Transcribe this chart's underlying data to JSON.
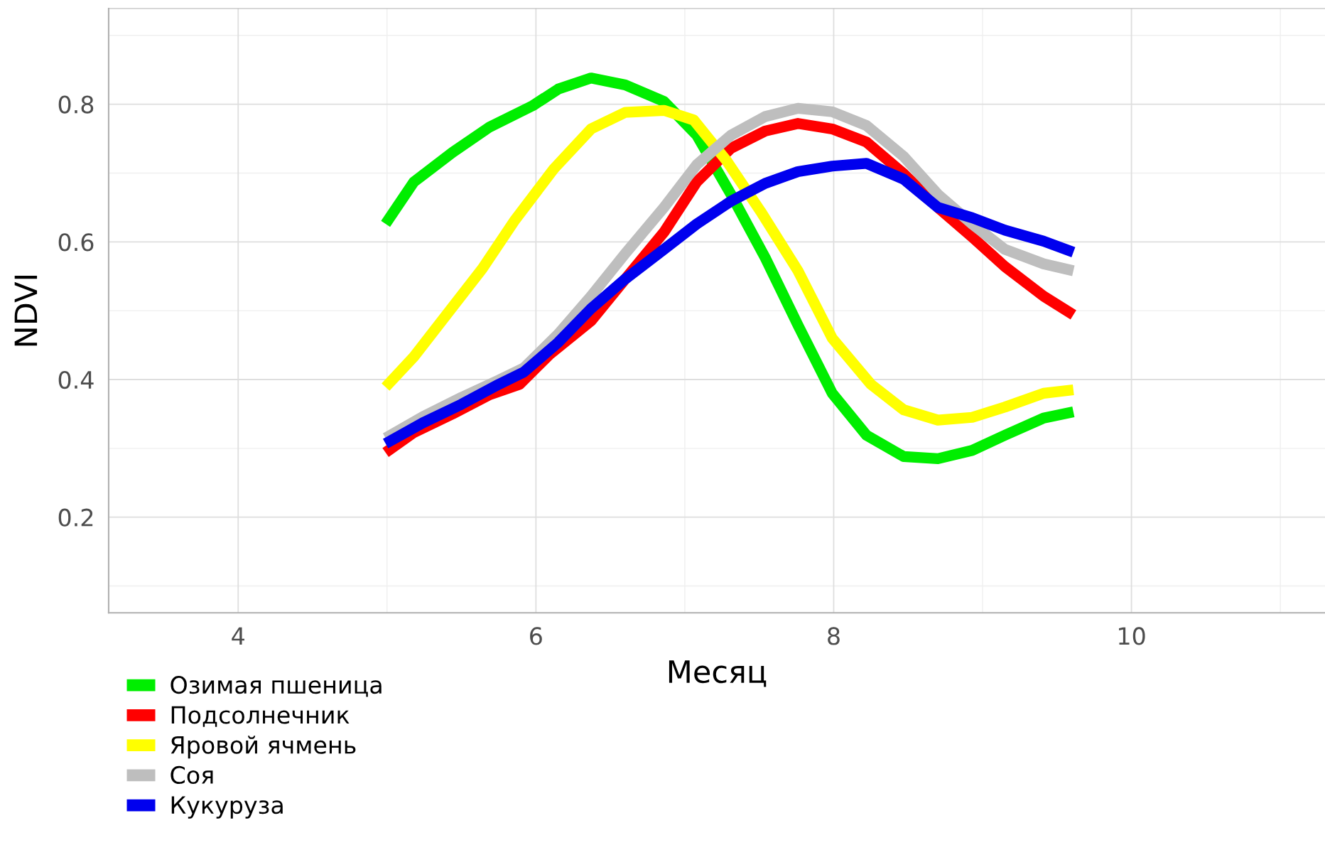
{
  "chart_data": {
    "type": "line",
    "xlabel": "Месяц",
    "ylabel": "NDVI",
    "xlim": [
      3.13,
      11.3
    ],
    "ylim": [
      0.061,
      0.939
    ],
    "xticks": [
      4,
      6,
      8,
      10
    ],
    "yticks": [
      0.2,
      0.4,
      0.6,
      0.8
    ],
    "grid": true,
    "legend": "bottom left",
    "line_style": "solid",
    "marker": "none",
    "series": [
      {
        "name": "Озимая пшеница",
        "color": "#00ee00",
        "x": [
          4.99,
          5.18,
          5.44,
          5.69,
          5.98,
          6.15,
          6.37,
          6.6,
          6.86,
          7.08,
          7.31,
          7.54,
          7.76,
          7.99,
          8.22,
          8.47,
          8.7,
          8.93,
          9.15,
          9.41,
          9.61
        ],
        "values": [
          0.626,
          0.687,
          0.73,
          0.767,
          0.798,
          0.822,
          0.838,
          0.828,
          0.804,
          0.755,
          0.669,
          0.577,
          0.479,
          0.38,
          0.319,
          0.288,
          0.285,
          0.297,
          0.319,
          0.344,
          0.353
        ]
      },
      {
        "name": "Подсолнечник",
        "color": "#ff0000",
        "x": [
          4.99,
          5.18,
          5.44,
          5.69,
          5.89,
          6.09,
          6.37,
          6.6,
          6.86,
          7.08,
          7.31,
          7.54,
          7.76,
          7.99,
          8.22,
          8.47,
          8.7,
          8.93,
          9.15,
          9.41,
          9.61
        ],
        "values": [
          0.294,
          0.323,
          0.35,
          0.378,
          0.393,
          0.436,
          0.485,
          0.546,
          0.614,
          0.687,
          0.736,
          0.761,
          0.772,
          0.764,
          0.745,
          0.699,
          0.65,
          0.607,
          0.564,
          0.521,
          0.494
        ]
      },
      {
        "name": "Яровой ячмень",
        "color": "#ffff00",
        "x": [
          4.99,
          5.18,
          5.41,
          5.64,
          5.86,
          6.12,
          6.37,
          6.6,
          6.86,
          7.06,
          7.28,
          7.51,
          7.76,
          7.99,
          8.25,
          8.47,
          8.7,
          8.93,
          9.15,
          9.41,
          9.61
        ],
        "values": [
          0.389,
          0.433,
          0.497,
          0.561,
          0.632,
          0.706,
          0.764,
          0.788,
          0.791,
          0.777,
          0.718,
          0.644,
          0.558,
          0.46,
          0.393,
          0.356,
          0.341,
          0.345,
          0.36,
          0.38,
          0.385
        ]
      },
      {
        "name": "Соя",
        "color": "#bebebe",
        "x": [
          4.99,
          5.24,
          5.5,
          5.75,
          5.92,
          6.15,
          6.37,
          6.6,
          6.86,
          7.08,
          7.31,
          7.54,
          7.76,
          7.99,
          8.22,
          8.47,
          8.7,
          8.93,
          9.15,
          9.41,
          9.61
        ],
        "values": [
          0.315,
          0.346,
          0.374,
          0.399,
          0.417,
          0.466,
          0.521,
          0.583,
          0.65,
          0.712,
          0.755,
          0.782,
          0.794,
          0.789,
          0.769,
          0.724,
          0.669,
          0.626,
          0.589,
          0.568,
          0.558
        ]
      },
      {
        "name": "Кукуруза",
        "color": "#0000ee",
        "x": [
          4.99,
          5.24,
          5.5,
          5.75,
          5.92,
          6.15,
          6.37,
          6.6,
          6.86,
          7.08,
          7.31,
          7.54,
          7.76,
          7.99,
          8.22,
          8.47,
          8.7,
          8.93,
          9.15,
          9.41,
          9.61
        ],
        "values": [
          0.307,
          0.337,
          0.364,
          0.393,
          0.411,
          0.454,
          0.503,
          0.546,
          0.589,
          0.626,
          0.659,
          0.685,
          0.702,
          0.71,
          0.714,
          0.691,
          0.65,
          0.635,
          0.617,
          0.601,
          0.585
        ]
      }
    ]
  }
}
